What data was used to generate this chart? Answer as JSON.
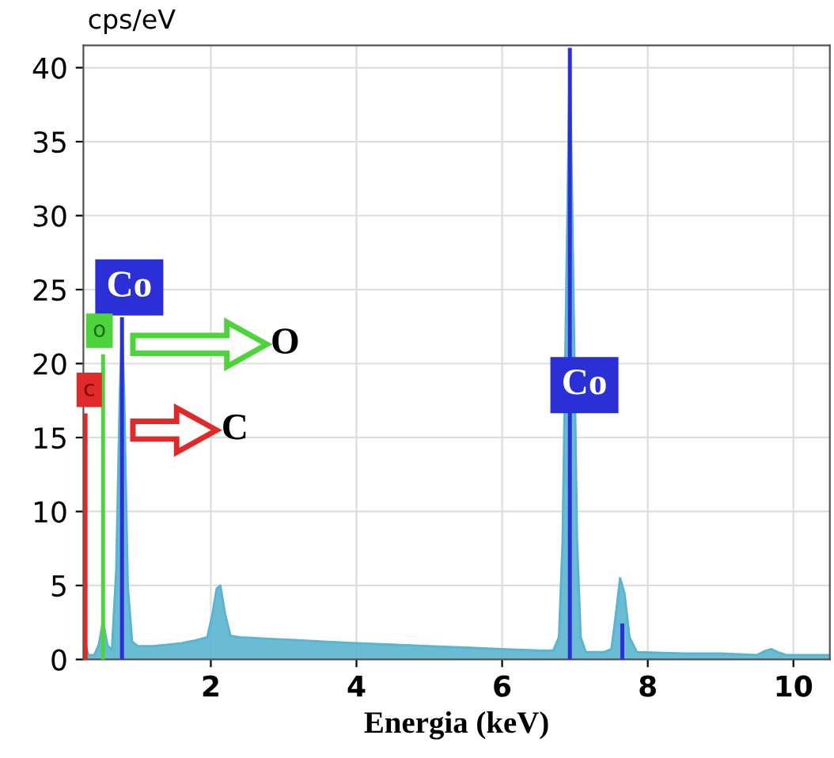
{
  "chart_data": {
    "type": "area",
    "ylabel": "cps/eV",
    "xlabel": "Energia (keV)",
    "xlim": [
      0.25,
      10.5
    ],
    "xticks": [
      2,
      4,
      6,
      8,
      10
    ],
    "ylim": [
      0,
      41.5
    ],
    "yticks": [
      0,
      5,
      10,
      15,
      20,
      25,
      30,
      35,
      40
    ],
    "grid": true,
    "series": [
      {
        "color": "#5ab4cf",
        "x": [
          0.25,
          0.28,
          0.32,
          0.4,
          0.46,
          0.52,
          0.58,
          0.64,
          0.7,
          0.75,
          0.78,
          0.81,
          0.86,
          0.92,
          1.0,
          1.2,
          1.4,
          1.6,
          1.8,
          1.95,
          2.02,
          2.08,
          2.13,
          2.2,
          2.27,
          2.4,
          2.8,
          3.2,
          3.6,
          4.0,
          4.5,
          5.0,
          5.5,
          6.0,
          6.5,
          6.7,
          6.78,
          6.83,
          6.88,
          6.93,
          6.98,
          7.03,
          7.08,
          7.15,
          7.4,
          7.5,
          7.56,
          7.62,
          7.68,
          7.75,
          7.85,
          8.5,
          9.0,
          9.5,
          9.62,
          9.7,
          9.78,
          9.9,
          10.5
        ],
        "values": [
          0.2,
          1.0,
          0.3,
          0.3,
          1.0,
          2.6,
          1.0,
          0.6,
          6,
          18,
          22.5,
          18,
          5,
          1.2,
          0.9,
          0.9,
          1.0,
          1.1,
          1.3,
          1.5,
          3.0,
          4.8,
          5.0,
          3.0,
          1.6,
          1.5,
          1.4,
          1.3,
          1.2,
          1.1,
          1.0,
          0.9,
          0.8,
          0.7,
          0.6,
          0.6,
          1.5,
          8,
          25,
          41.2,
          25,
          8,
          1.5,
          0.5,
          0.5,
          0.7,
          3,
          5.5,
          4.5,
          1.5,
          0.5,
          0.4,
          0.4,
          0.3,
          0.6,
          0.7,
          0.5,
          0.3,
          0.3
        ]
      },
      {
        "type": "line",
        "color": "#2b2fd6",
        "x": [
          0.78,
          0.78
        ],
        "values": [
          0,
          23
        ]
      },
      {
        "type": "line",
        "color": "#4cd43a",
        "x": [
          0.52,
          0.52
        ],
        "values": [
          0,
          20.5
        ]
      },
      {
        "type": "line",
        "color": "#e02a2a",
        "x": [
          0.28,
          0.28
        ],
        "values": [
          0,
          16.5
        ]
      },
      {
        "type": "line",
        "color": "#2b2fd6",
        "x": [
          6.93,
          6.93
        ],
        "values": [
          0,
          41.2
        ]
      },
      {
        "type": "line",
        "color": "#2b2fd6",
        "x": [
          7.65,
          7.65
        ],
        "values": [
          0,
          2.3
        ]
      }
    ],
    "annotations": [
      "Co",
      "o",
      "c",
      "O",
      "C",
      "Co"
    ]
  }
}
